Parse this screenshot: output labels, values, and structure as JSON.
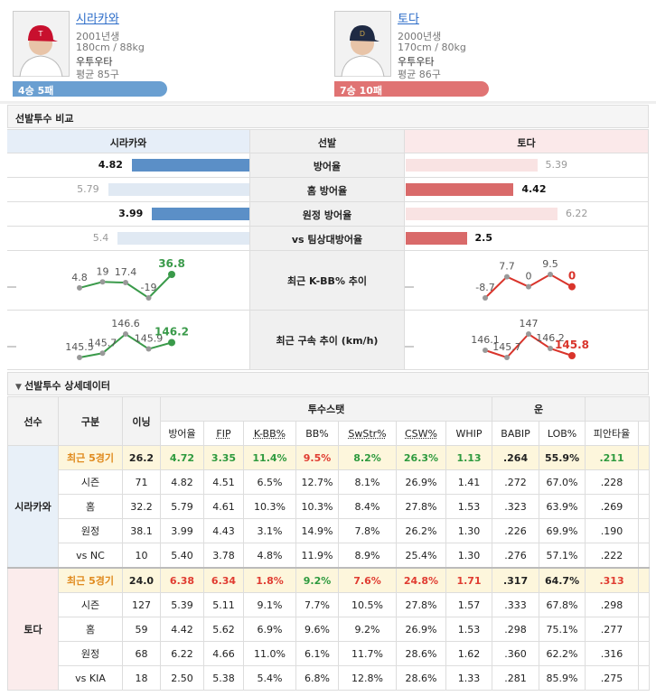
{
  "players": [
    {
      "name": "시라카와",
      "born": "2001년생",
      "body": "180cm / 88kg",
      "hand": "우투우타",
      "avg_pitches": "평균 85구",
      "record": "4승 5패",
      "color": "#6a9fd1"
    },
    {
      "name": "토다",
      "born": "2000년생",
      "body": "170cm / 80kg",
      "hand": "우투우타",
      "avg_pitches": "평균 86구",
      "record": "7승 10패",
      "color": "#e07373"
    }
  ],
  "comparison": {
    "title": "선발투수 비교",
    "headers": [
      "시라카와",
      "선발",
      "토다"
    ],
    "rows": [
      {
        "label": "방어율",
        "values": [
          4.82,
          5.39
        ]
      },
      {
        "label": "홈 방어율",
        "values": [
          5.79,
          4.42
        ]
      },
      {
        "label": "원정 방어율",
        "values": [
          3.99,
          6.22
        ]
      },
      {
        "label": "vs 팀상대방어율",
        "values": [
          5.4,
          2.5
        ]
      }
    ],
    "charts": [
      {
        "label": "최근 K-BB% 추이",
        "series": [
          {
            "color": "#3a9a4a",
            "values": [
              4.8,
              19,
              17.4,
              -19,
              36.8
            ]
          },
          {
            "color": "#d9342b",
            "values": [
              -8.7,
              7.7,
              0,
              9.5,
              0
            ]
          }
        ]
      },
      {
        "label": "최근 구속 추이 (km/h)",
        "series": [
          {
            "color": "#3a9a4a",
            "values": [
              145.5,
              145.7,
              146.6,
              145.9,
              146.2
            ]
          },
          {
            "color": "#d9342b",
            "values": [
              146.1,
              145.7,
              147,
              146.2,
              145.8
            ]
          }
        ]
      }
    ]
  },
  "detail": {
    "title": "선발투수 상세데이터",
    "head_top": [
      "선수",
      "구분",
      "이닝",
      "투수스탯",
      "운"
    ],
    "headers": [
      "방어율",
      "FIP",
      "K-BB%",
      "BB%",
      "SwStr%",
      "CSW%",
      "WHIP",
      "BABIP",
      "LOB%",
      "피안타율"
    ],
    "players": [
      {
        "name": "시라카와",
        "recent_colors": [
          "#e08a1e",
          "#222222",
          "#2e9a3e",
          "#2e9a3e",
          "#2e9a3e",
          "#e03c31",
          "#2e9a3e",
          "#2e9a3e",
          "#2e9a3e",
          "#222222",
          "#222222",
          "#2e9a3e"
        ],
        "rows": [
          [
            "최근 5경기",
            "26.2",
            "4.72",
            "3.35",
            "11.4%",
            "9.5%",
            "8.2%",
            "26.3%",
            "1.13",
            ".264",
            "55.9%",
            ".211"
          ],
          [
            "시즌",
            "71",
            "4.82",
            "4.51",
            "6.5%",
            "12.7%",
            "8.1%",
            "26.9%",
            "1.41",
            ".272",
            "67.0%",
            ".228"
          ],
          [
            "홈",
            "32.2",
            "5.79",
            "4.61",
            "10.3%",
            "10.3%",
            "8.4%",
            "27.8%",
            "1.53",
            ".323",
            "63.9%",
            ".269"
          ],
          [
            "원정",
            "38.1",
            "3.99",
            "4.43",
            "3.1%",
            "14.9%",
            "7.8%",
            "26.2%",
            "1.30",
            ".226",
            "69.9%",
            ".190"
          ],
          [
            "vs NC",
            "10",
            "5.40",
            "3.78",
            "4.8%",
            "11.9%",
            "8.9%",
            "25.4%",
            "1.30",
            ".276",
            "57.1%",
            ".222"
          ]
        ]
      },
      {
        "name": "토다",
        "recent_colors": [
          "#e08a1e",
          "#222222",
          "#e03c31",
          "#e03c31",
          "#e03c31",
          "#2e9a3e",
          "#e03c31",
          "#e03c31",
          "#e03c31",
          "#222222",
          "#222222",
          "#e03c31"
        ],
        "rows": [
          [
            "최근 5경기",
            "24.0",
            "6.38",
            "6.34",
            "1.8%",
            "9.2%",
            "7.6%",
            "24.8%",
            "1.71",
            ".317",
            "64.7%",
            ".313"
          ],
          [
            "시즌",
            "127",
            "5.39",
            "5.11",
            "9.1%",
            "7.7%",
            "10.5%",
            "27.8%",
            "1.57",
            ".333",
            "67.8%",
            ".298"
          ],
          [
            "홈",
            "59",
            "4.42",
            "5.62",
            "6.9%",
            "9.6%",
            "9.2%",
            "26.9%",
            "1.53",
            ".298",
            "75.1%",
            ".277"
          ],
          [
            "원정",
            "68",
            "6.22",
            "4.66",
            "11.0%",
            "6.1%",
            "11.7%",
            "28.6%",
            "1.62",
            ".360",
            "62.2%",
            ".316"
          ],
          [
            "vs KIA",
            "18",
            "2.50",
            "5.38",
            "5.4%",
            "6.8%",
            "12.8%",
            "28.6%",
            "1.33",
            ".281",
            "85.9%",
            ".275"
          ]
        ]
      }
    ]
  }
}
